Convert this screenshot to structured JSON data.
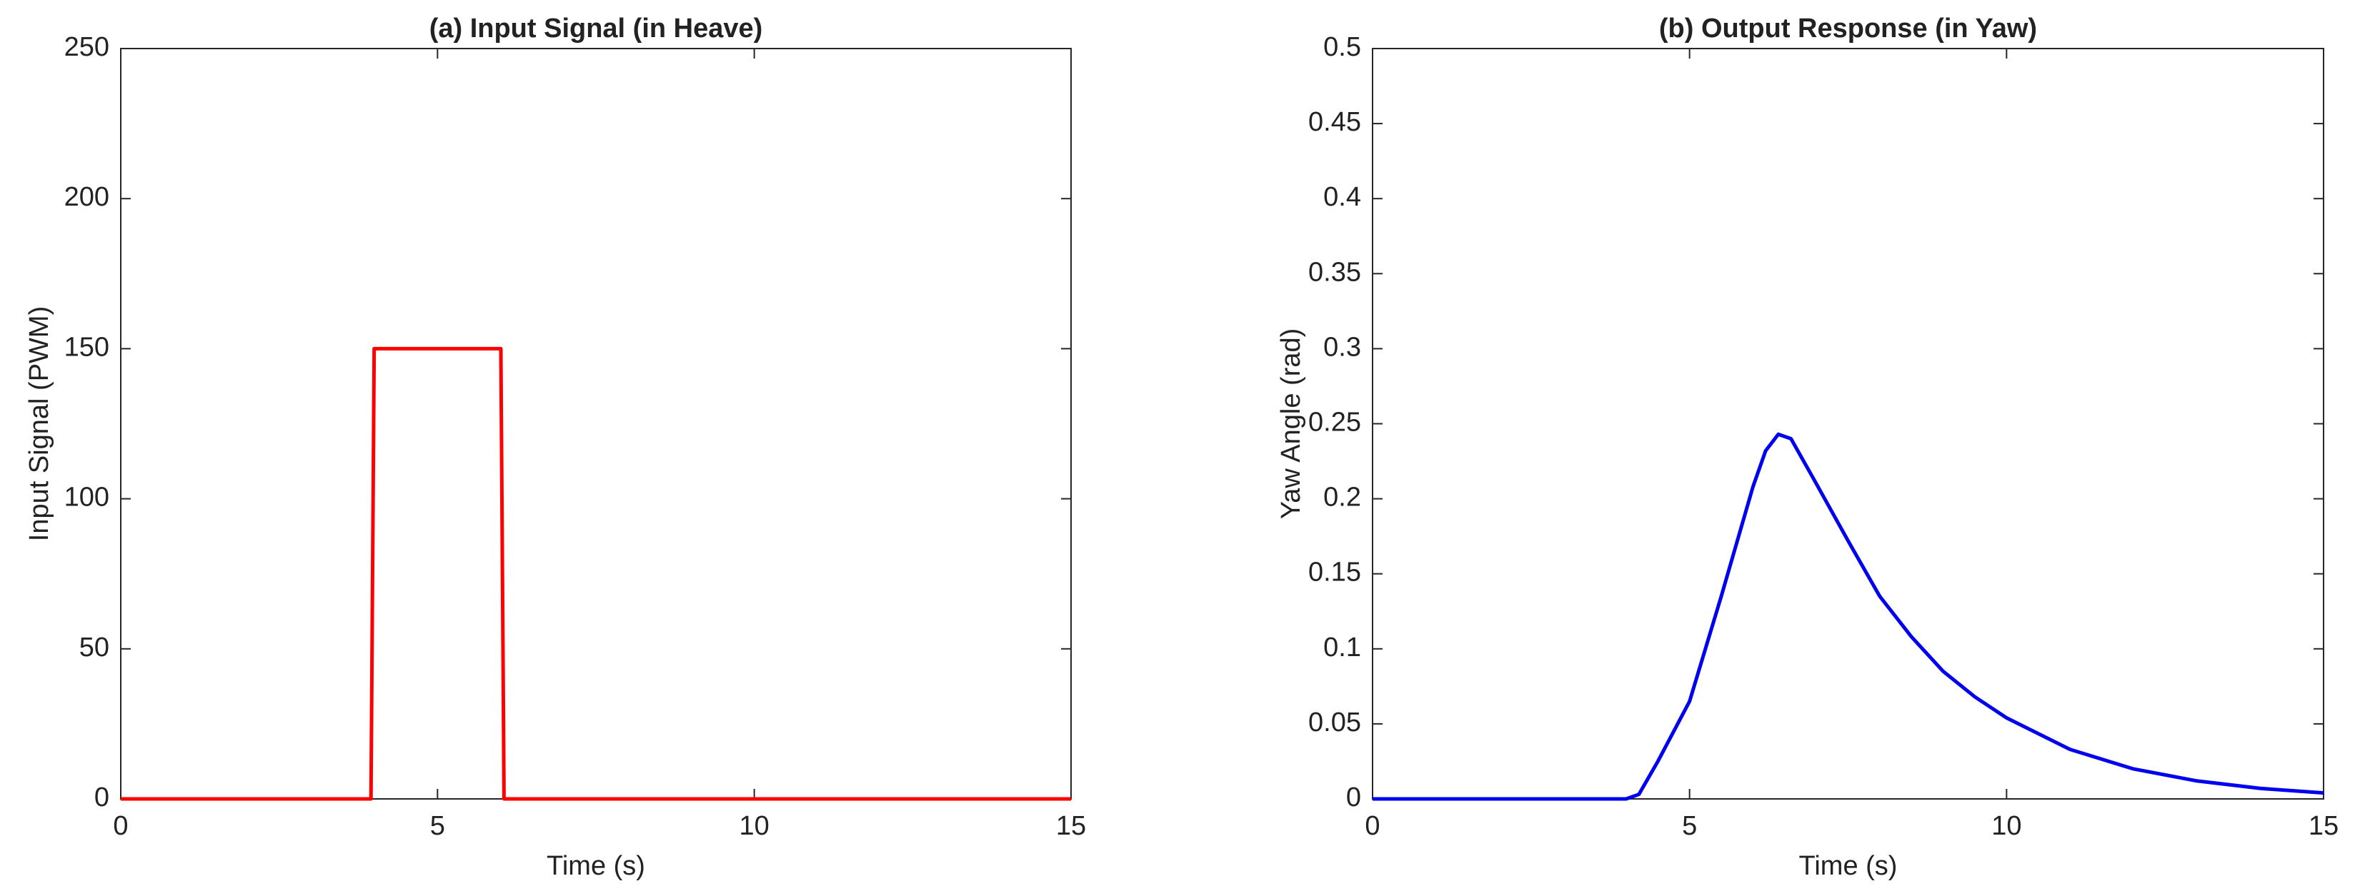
{
  "chart_data": [
    {
      "type": "line",
      "title": "(a) Input Signal (in Heave)",
      "x_label": "Time (s)",
      "y_label": "Input Signal (PWM)",
      "xlim": [
        0,
        15
      ],
      "xticks": [
        0,
        5,
        10,
        15
      ],
      "ylim": [
        0,
        250
      ],
      "yticks": [
        0,
        50,
        100,
        150,
        200,
        250
      ],
      "series": [
        {
          "color": "#ff0000",
          "x": [
            0,
            3.95,
            4,
            6,
            6.05,
            15
          ],
          "values": [
            0,
            0,
            150,
            150,
            0,
            0
          ]
        }
      ]
    },
    {
      "type": "line",
      "title": "(b) Output Response (in Yaw)",
      "x_label": "Time (s)",
      "y_label": "Yaw Angle (rad)",
      "xlim": [
        0,
        15
      ],
      "xticks": [
        0,
        5,
        10,
        15
      ],
      "ylim": [
        0,
        0.5
      ],
      "yticks": [
        0,
        0.05,
        0.1,
        0.15,
        0.2,
        0.25,
        0.3,
        0.35,
        0.4,
        0.45,
        0.5
      ],
      "series": [
        {
          "color": "#0000ee",
          "x": [
            0,
            4,
            4.2,
            4.5,
            5,
            5.5,
            6,
            6.2,
            6.4,
            6.6,
            7,
            7.5,
            8,
            8.5,
            9,
            9.5,
            10,
            11,
            12,
            13,
            14,
            15
          ],
          "values": [
            0,
            0,
            0.003,
            0.025,
            0.065,
            0.135,
            0.208,
            0.232,
            0.243,
            0.24,
            0.21,
            0.172,
            0.135,
            0.108,
            0.085,
            0.068,
            0.054,
            0.033,
            0.02,
            0.012,
            0.007,
            0.004
          ]
        }
      ]
    }
  ]
}
